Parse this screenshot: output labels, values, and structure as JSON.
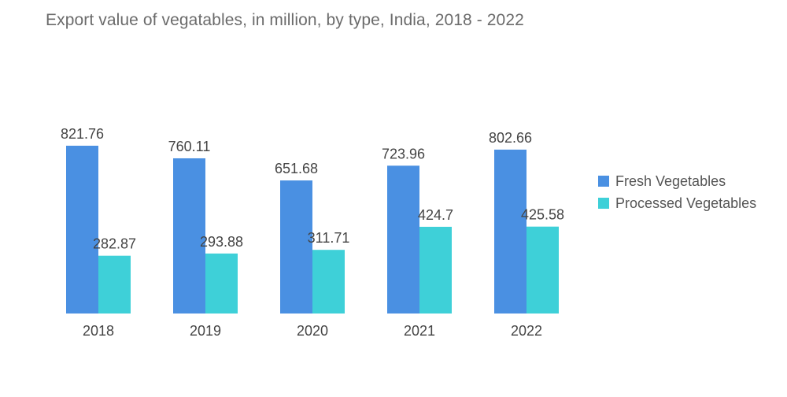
{
  "chart_data": {
    "type": "bar",
    "title": "Export value of vegatables, in million, by type, India, 2018 - 2022",
    "xlabel": "",
    "ylabel": "",
    "categories": [
      "2018",
      "2019",
      "2020",
      "2021",
      "2022"
    ],
    "series": [
      {
        "name": "Fresh Vegetables",
        "color": "#4a90e2",
        "values": [
          821.76,
          760.11,
          651.68,
          723.96,
          802.66
        ],
        "labels": [
          "821.76",
          "760.11",
          "651.68",
          "723.96",
          "802.66"
        ]
      },
      {
        "name": "Processed Vegetables",
        "color": "#3ed0d8",
        "values": [
          282.87,
          293.88,
          311.71,
          424.7,
          425.58
        ],
        "labels": [
          "282.87",
          "293.88",
          "311.71",
          "424.7",
          "425.58"
        ]
      }
    ],
    "ylim": [
      0,
      821.76
    ],
    "grid": false,
    "legend_position": "right"
  }
}
